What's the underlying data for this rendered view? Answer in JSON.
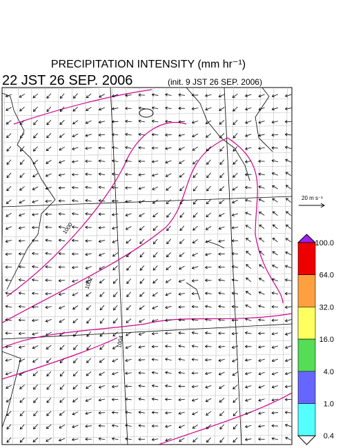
{
  "header": {
    "title": "PRECIPITATION INTENSITY (mm hr⁻¹)",
    "valid_time": "22 JST 26 SEP. 2006",
    "init_time": "(init. 9 JST 26 SEP. 2006)"
  },
  "map": {
    "contour_labels": [
      "1000",
      "1002",
      "1004"
    ],
    "vector_scale": "20 m s⁻¹"
  },
  "colorbar": {
    "labels": [
      "100.0",
      "64.0",
      "32.0",
      "16.0",
      "4.0",
      "1.0",
      "0.4"
    ],
    "colors": [
      "#a020f0",
      "#ee0000",
      "#ffa040",
      "#ffff60",
      "#55dd55",
      "#6666ff",
      "#55ffff",
      "#ffffff"
    ]
  }
}
